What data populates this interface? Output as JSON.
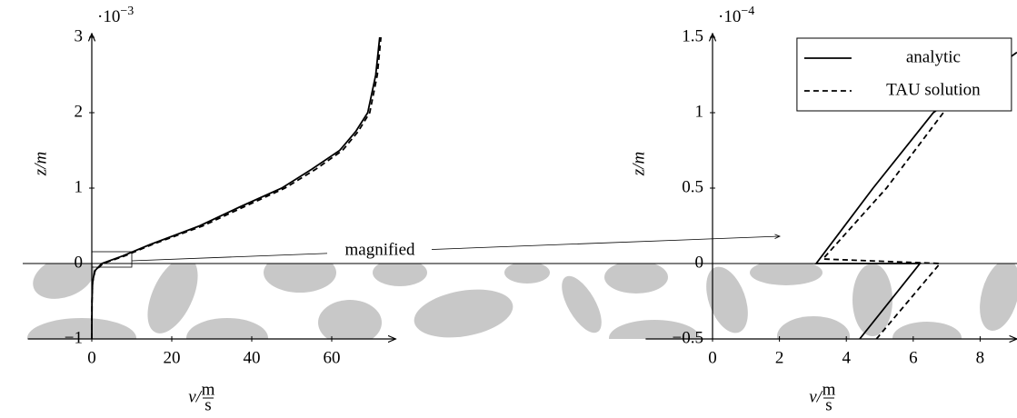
{
  "chart_data": [
    {
      "type": "line",
      "xlabel": "v/",
      "xlabel_unit_numerator": "m",
      "xlabel_unit_denominator": "s",
      "ylabel": "z/m",
      "y_scale_base": "·10",
      "y_scale_exponent": "−3",
      "annotation": "magnified",
      "xlim": [
        -16,
        76
      ],
      "ylim": [
        -1,
        3
      ],
      "xticks": [
        0,
        20,
        40,
        60
      ],
      "yticks": [
        {
          "value": -1,
          "label": "−1"
        },
        0,
        1,
        2,
        3
      ],
      "series": [
        {
          "name": "analytic",
          "color": "#000000",
          "dash": "solid",
          "x": [
            0,
            0.05,
            0.2,
            0.7,
            2.5,
            7.7,
            14.5,
            27,
            37,
            47.5,
            55,
            62,
            66,
            69,
            71,
            72
          ],
          "values": [
            -1,
            -0.5,
            -0.25,
            -0.1,
            0,
            0.1,
            0.25,
            0.5,
            0.75,
            1,
            1.25,
            1.5,
            1.75,
            2,
            2.5,
            3
          ]
        },
        {
          "name": "TAU solution",
          "color": "#000000",
          "dash": "dashed",
          "x": [
            0,
            0.05,
            0.2,
            0.8,
            2.8,
            8.2,
            15,
            27.8,
            38,
            48.3,
            56,
            62.7,
            66.6,
            69.5,
            71.4,
            72.3
          ],
          "values": [
            -1,
            -0.5,
            -0.25,
            -0.1,
            0,
            0.1,
            0.25,
            0.5,
            0.75,
            1,
            1.25,
            1.5,
            1.75,
            2,
            2.5,
            3
          ]
        }
      ]
    },
    {
      "type": "line",
      "xlabel": "v/",
      "xlabel_unit_numerator": "m",
      "xlabel_unit_denominator": "s",
      "ylabel": "z/m",
      "y_scale_base": "·10",
      "y_scale_exponent": "−4",
      "legend": "upper right",
      "xlim": [
        -2,
        9.1
      ],
      "ylim": [
        -0.5,
        1.5
      ],
      "xticks": [
        0,
        2,
        4,
        6,
        8
      ],
      "yticks": [
        {
          "value": -0.5,
          "label": "−0.5"
        },
        0,
        0.5,
        1,
        1.5
      ],
      "series": [
        {
          "name": "analytic",
          "color": "#000000",
          "dash": "solid",
          "x": [
            4.4,
            6.2,
            3.1,
            4.8,
            6.6,
            9.1
          ],
          "values": [
            -0.5,
            0,
            0,
            0.5,
            1,
            1.4
          ]
        },
        {
          "name": "TAU solution",
          "color": "#000000",
          "dash": "dashed",
          "x": [
            4.9,
            6.8,
            3.3,
            5.2,
            6.9,
            8.9
          ],
          "values": [
            -0.5,
            0,
            0.03,
            0.5,
            1,
            1.4
          ]
        }
      ]
    }
  ]
}
